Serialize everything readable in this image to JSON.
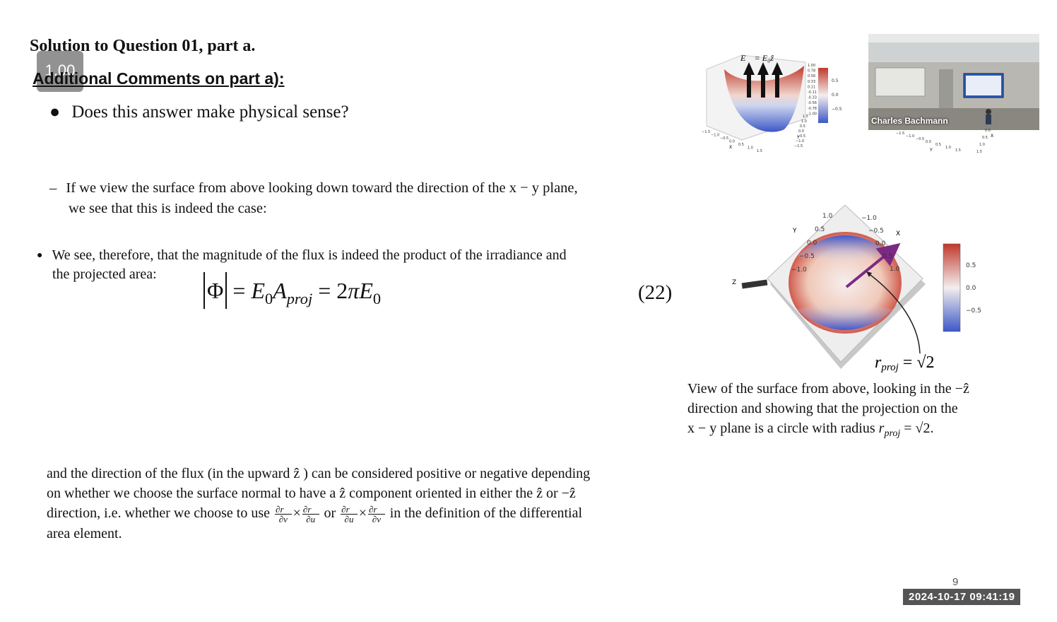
{
  "slide": {
    "title": "Solution to Question 01, part a.",
    "zoom_badge": "1.00",
    "section_heading": "Additional Comments on part a):",
    "bullet_question": "Does this answer make physical sense?",
    "dash_line1": "If we view the surface from above looking down toward the direction of the x − y plane,",
    "dash_line2": "we see that this is indeed the case:",
    "bullet2_line1": "We see, therefore, that the magnitude of the flux is indeed the product of the irradiance and",
    "bullet2_line2": "the projected area:",
    "equation_number": "(22)",
    "para_line1": "and the direction of the flux (in the upward ẑ ) can be considered positive or negative depending",
    "para_line2": "on whether we choose the surface normal to have a ẑ component oriented in either the ẑ or −ẑ",
    "para_line3_a": "direction, i.e. whether we choose to use",
    "para_line3_or": "or",
    "para_line3_b": "in the definition of the differential",
    "para_line4": "area element.",
    "caption_line1": "View of the surface from above, looking in the −ẑ",
    "caption_line2": "direction and showing that the projection on the",
    "caption_line3": "x − y plane is a circle with radius",
    "page_number": "9"
  },
  "top_figure": {
    "label": "E⃗ = E₀ẑ",
    "colorbar_labels": [
      "1.00",
      "0.78",
      "0.56",
      "0.33",
      "0.11",
      "-0.11",
      "-0.33",
      "-0.56",
      "-0.78",
      "-1.00"
    ],
    "colorbar2_labels": [
      "0.5",
      "0.0",
      "−0.5"
    ],
    "x_ticks": [
      "−1.5",
      "−1.0",
      "−0.5",
      "0.0",
      "0.5",
      "1.0",
      "1.5"
    ],
    "y_ticks": [
      "1.5",
      "1.0",
      "0.5",
      "0.0",
      "−0.5",
      "−1.0",
      "−1.5"
    ],
    "xlabel": "X",
    "ylabel": "Y"
  },
  "webcam": {
    "presenter_name": "Charles Bachmann",
    "x_ticks": [
      "−1.5",
      "−1.0",
      "−0.5",
      "0.0",
      "0.5",
      "1.0",
      "1.5"
    ],
    "y_ticks": [
      "0.0",
      "0.5",
      "1.0",
      "1.5"
    ],
    "xlabel": "X",
    "ylabel": "Y"
  },
  "top_view_figure": {
    "y_ticks": [
      "1.0",
      "0.5",
      "0.0",
      "−0.5",
      "−1.0"
    ],
    "x_ticks": [
      "−1.0",
      "−0.5",
      "0.0",
      "0.5",
      "1.0"
    ],
    "ylabel": "Y",
    "xlabel": "X",
    "zlabel": "Z",
    "colorbar_labels": [
      "0.5",
      "0.0",
      "−0.5"
    ],
    "annotation": "r_proj = √2"
  },
  "status": {
    "timestamp": "2024-10-17 09:41:19"
  }
}
